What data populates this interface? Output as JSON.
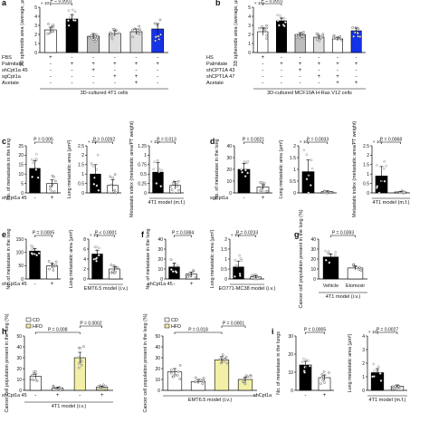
{
  "colors": {
    "black": "#000000",
    "grey": "#bdbdbd",
    "lightgrey": "#dedede",
    "blue": "#1532e8",
    "yellow": "#f2f0a6",
    "white": "#ffffff"
  },
  "chart_data": [
    {
      "id": "a",
      "panel_label": "a",
      "type": "bar",
      "ylabel": "3D spheroids area (average, μm²)",
      "ytick_scale": "× 10⁴",
      "ylim": [
        0,
        5
      ],
      "yticks": [
        0,
        1,
        2,
        3,
        4,
        5
      ],
      "xlabel": "3D-cultured 4T1 cells",
      "values": [
        2.5,
        3.7,
        1.8,
        2.1,
        2.3,
        2.6
      ],
      "errors": [
        0.3,
        0.5,
        0.3,
        0.3,
        0.3,
        0.6
      ],
      "colors": [
        "white",
        "black",
        "grey",
        "lightgrey",
        "lightgrey",
        "blue"
      ],
      "conditions": [
        {
          "label": "FBS",
          "signs": [
            "+",
            "-",
            "-",
            "-",
            "-",
            "-"
          ]
        },
        {
          "label": "Palmitate",
          "signs": [
            "-",
            "+",
            "+",
            "+",
            "+",
            "+"
          ]
        },
        {
          "label": "shCpt1a 45",
          "signs": [
            "-",
            "-",
            "+",
            "-",
            "-",
            "-"
          ]
        },
        {
          "label": "sgCpt1a",
          "signs": [
            "-",
            "-",
            "-",
            "+",
            "+",
            "-"
          ]
        },
        {
          "label": "Acetate",
          "signs": [
            "-",
            "-",
            "-",
            "-",
            "+",
            "-"
          ]
        }
      ],
      "annotations": [
        {
          "text": "P = 0.0001",
          "from": 0,
          "to": 1
        },
        {
          "text": "P = 0.0001",
          "from": 1,
          "to": 3
        },
        {
          "text": "P = 0.0001",
          "from": 1,
          "to": 2
        }
      ]
    },
    {
      "id": "b",
      "panel_label": "b",
      "type": "bar",
      "ylabel": "3D spheroids area (average, μm²)",
      "ytick_scale": "× 10⁴",
      "ylim": [
        0,
        5
      ],
      "yticks": [
        0,
        1,
        2,
        3,
        4,
        5
      ],
      "xlabel": "3D-cultured MCF10A H-Ras V12 cells",
      "values": [
        2.3,
        3.5,
        2.0,
        1.7,
        1.5,
        2.4
      ],
      "errors": [
        0.4,
        0.3,
        0.2,
        0.2,
        0.2,
        0.3
      ],
      "colors": [
        "white",
        "black",
        "grey",
        "lightgrey",
        "white",
        "blue"
      ],
      "conditions": [
        {
          "label": "HS",
          "signs": [
            "+",
            "-",
            "-",
            "-",
            "-",
            "-"
          ]
        },
        {
          "label": "Palmitate",
          "signs": [
            "-",
            "+",
            "+",
            "+",
            "+",
            "+"
          ]
        },
        {
          "label": "shCPT1A 43",
          "signs": [
            "-",
            "-",
            "+",
            "-",
            "-",
            "-"
          ]
        },
        {
          "label": "shCPT1A 47",
          "signs": [
            "-",
            "-",
            "-",
            "+",
            "+",
            "-"
          ]
        },
        {
          "label": "Acetate",
          "signs": [
            "-",
            "-",
            "-",
            "-",
            "+",
            "+"
          ]
        }
      ],
      "annotations": [
        {
          "text": "P = 0.0001",
          "from": 0,
          "to": 1
        },
        {
          "text": "P = 0.0001",
          "from": 1,
          "to": 4
        },
        {
          "text": "P = 0.0001",
          "from": 1,
          "to": 3
        }
      ]
    },
    {
      "id": "c1",
      "panel_label": "c",
      "type": "bar",
      "ylabel": "No. of metastasis in the lung",
      "ylim": [
        0,
        25
      ],
      "yticks": [
        0,
        5,
        10,
        15,
        20,
        25
      ],
      "values": [
        13,
        5
      ],
      "errors": [
        4,
        2
      ],
      "colors": [
        "black",
        "white"
      ],
      "conditions": [
        {
          "label": "shCpt1a 45",
          "signs": [
            "-",
            "+"
          ]
        }
      ],
      "annotations": [
        {
          "text": "P = 0.005",
          "from": 0,
          "to": 1
        }
      ]
    },
    {
      "id": "c2",
      "type": "bar",
      "ylabel": "Lung metastatic area (μm²)",
      "ytick_scale": "× 10⁷",
      "ylim": [
        0,
        2.5
      ],
      "yticks": [
        0,
        0.5,
        1.0,
        1.5,
        2.0,
        2.5
      ],
      "values": [
        1.0,
        0.4
      ],
      "errors": [
        0.5,
        0.3
      ],
      "colors": [
        "black",
        "white"
      ],
      "annotations": [
        {
          "text": "P = 0.0262",
          "from": 0,
          "to": 1
        }
      ]
    },
    {
      "id": "c3",
      "type": "bar",
      "ylabel": "Metastatic index (metastatic area/PT weight)",
      "ytick_scale": "× 10⁴",
      "ylim": [
        0,
        1.25
      ],
      "yticks": [
        0,
        0.25,
        0.5,
        0.75,
        1.0,
        1.25
      ],
      "xlabel": "4T1 model (m.f.)",
      "values": [
        0.55,
        0.2
      ],
      "errors": [
        0.25,
        0.1
      ],
      "colors": [
        "black",
        "white"
      ],
      "annotations": [
        {
          "text": "P = 0.013",
          "from": 0,
          "to": 1
        }
      ]
    },
    {
      "id": "d1",
      "panel_label": "d",
      "type": "bar",
      "ylabel": "No. of metastase in the lung",
      "ylim": [
        0,
        40
      ],
      "yticks": [
        0,
        10,
        20,
        30,
        40
      ],
      "values": [
        20,
        5
      ],
      "errors": [
        5,
        2
      ],
      "colors": [
        "black",
        "white"
      ],
      "conditions": [
        {
          "label": "sgCpt1a",
          "signs": [
            "-",
            "+"
          ]
        }
      ],
      "annotations": [
        {
          "text": "P = 0.0021",
          "from": 0,
          "to": 1
        }
      ]
    },
    {
      "id": "d2",
      "type": "bar",
      "ylabel": "Lung metastatic area (μm²)",
      "ytick_scale": "× 10⁷",
      "ylim": [
        0,
        2.0
      ],
      "yticks": [
        0,
        0.5,
        1.0,
        1.5,
        2.0
      ],
      "values": [
        0.9,
        0.05
      ],
      "errors": [
        0.5,
        0.03
      ],
      "colors": [
        "black",
        "white"
      ],
      "annotations": [
        {
          "text": "P = 0.0033",
          "from": 0,
          "to": 1
        }
      ]
    },
    {
      "id": "d3",
      "type": "bar",
      "ylabel": "Metastatic index (metastatic area/PT weight)",
      "ytick_scale": "× 10⁷",
      "ylim": [
        0,
        2.5
      ],
      "yticks": [
        0,
        0.5,
        1.0,
        1.5,
        2.0,
        2.5
      ],
      "xlabel": "4T1 model (m.f.)",
      "values": [
        0.9,
        0.05
      ],
      "errors": [
        0.5,
        0.03
      ],
      "colors": [
        "black",
        "white"
      ],
      "annotations": [
        {
          "text": "P = 0.0068",
          "from": 0,
          "to": 1
        }
      ]
    },
    {
      "id": "e1",
      "panel_label": "e",
      "type": "bar",
      "ylabel": "No. of metastase in the lung",
      "ylim": [
        0,
        150
      ],
      "yticks": [
        0,
        50,
        100,
        150
      ],
      "values": [
        105,
        50
      ],
      "errors": [
        10,
        8
      ],
      "colors": [
        "black",
        "white"
      ],
      "conditions": [
        {
          "label": "shCpt1a 45",
          "signs": [
            "-",
            "+"
          ]
        }
      ],
      "annotations": [
        {
          "text": "P = 0.0005",
          "from": 0,
          "to": 1
        }
      ]
    },
    {
      "id": "e2",
      "type": "bar",
      "ylabel": "Lung metastatic area (μm²)",
      "ytick_scale": "× 10⁷",
      "ylim": [
        0,
        8
      ],
      "yticks": [
        0,
        2,
        4,
        6,
        8
      ],
      "xlabel": "EMT6.5 model (i.v.)",
      "values": [
        5.0,
        2.0
      ],
      "errors": [
        0.7,
        0.4
      ],
      "colors": [
        "black",
        "white"
      ],
      "annotations": [
        {
          "text": "P < 0.0001",
          "from": 0,
          "to": 1
        }
      ]
    },
    {
      "id": "f1",
      "panel_label": "f",
      "type": "bar",
      "ylabel": "No. of metastase in the lung",
      "ylim": [
        0,
        40
      ],
      "yticks": [
        0,
        10,
        20,
        30,
        40
      ],
      "values": [
        12,
        5
      ],
      "errors": [
        4,
        2
      ],
      "colors": [
        "black",
        "white"
      ],
      "conditions": [
        {
          "label": "shCpt1a 45",
          "signs": [
            "-",
            "+"
          ]
        }
      ],
      "annotations": [
        {
          "text": "P = 0.0384",
          "from": 0,
          "to": 1
        }
      ]
    },
    {
      "id": "f2",
      "type": "bar",
      "ylabel": "Lung metastatic area (μm²)",
      "ytick_scale": "× 10⁸",
      "ylim": [
        0,
        2.0
      ],
      "yticks": [
        0,
        0.5,
        1.0,
        1.5,
        2.0
      ],
      "xlabel": "EO771-MC38 model (i.v.)",
      "values": [
        0.6,
        0.1
      ],
      "errors": [
        0.3,
        0.05
      ],
      "colors": [
        "black",
        "white"
      ],
      "annotations": [
        {
          "text": "P = 0.0233",
          "from": 0,
          "to": 1
        }
      ]
    },
    {
      "id": "g",
      "panel_label": "g",
      "type": "bar",
      "ylabel": "Cancer cell population present in the lung (%)",
      "ylim": [
        0,
        40
      ],
      "yticks": [
        0,
        10,
        20,
        30,
        40
      ],
      "xlabel": "4T1 model (i.v.)",
      "values": [
        22,
        11
      ],
      "errors": [
        3,
        2
      ],
      "colors": [
        "black",
        "white"
      ],
      "categories": [
        "Vehicle",
        "Etomoxir"
      ],
      "annotations": [
        {
          "text": "P = 0.0393",
          "from": 0,
          "to": 1
        }
      ]
    },
    {
      "id": "h1",
      "panel_label": "h",
      "type": "bar",
      "ylabel": "Cancer cell population present in the lung (%)",
      "ylim": [
        0,
        50
      ],
      "yticks": [
        0,
        10,
        20,
        30,
        40,
        50
      ],
      "xlabel": "4T1 model (i.v.)",
      "legend": [
        "CD",
        "HFD"
      ],
      "values": [
        13,
        2,
        30,
        3
      ],
      "errors": [
        2,
        1,
        5,
        1
      ],
      "colors": [
        "white",
        "white",
        "yellow",
        "yellow"
      ],
      "conditions": [
        {
          "label": "shCpt1a 45",
          "signs": [
            "-",
            "+",
            "-",
            "+"
          ]
        }
      ],
      "annotations": [
        {
          "text": "P = 0.008",
          "from": 0,
          "to": 2
        },
        {
          "text": "P = 0.0002",
          "from": 2,
          "to": 3
        }
      ]
    },
    {
      "id": "h2",
      "type": "bar",
      "ylabel": "Cancer cell population present in the lung (%)",
      "ylim": [
        0,
        50
      ],
      "yticks": [
        0,
        10,
        20,
        30,
        40,
        50
      ],
      "xlabel": "EMT6.5 model (i.v.)",
      "legend": [
        "CD",
        "HFD"
      ],
      "values": [
        17,
        8,
        28,
        10
      ],
      "errors": [
        3,
        2,
        3,
        2
      ],
      "colors": [
        "white",
        "white",
        "yellow",
        "yellow"
      ],
      "annotations": [
        {
          "text": "P = 0.018",
          "from": 0,
          "to": 2
        },
        {
          "text": "P = 0.0001",
          "from": 2,
          "to": 3
        }
      ]
    },
    {
      "id": "i1",
      "panel_label": "i",
      "type": "bar",
      "ylabel": "No. of metastase in the lungs",
      "ylim": [
        0,
        30
      ],
      "yticks": [
        0,
        10,
        20,
        30
      ],
      "values": [
        14,
        7
      ],
      "errors": [
        2,
        1.5
      ],
      "colors": [
        "black",
        "white"
      ],
      "conditions": [
        {
          "label": "shCpt1a",
          "signs": [
            "-",
            "+"
          ]
        }
      ],
      "annotations": [
        {
          "text": "P = 0.0005",
          "from": 0,
          "to": 1
        }
      ]
    },
    {
      "id": "i2",
      "type": "bar",
      "ylabel": "Lung metastatic area (μm²)",
      "ytick_scale": "× 10⁴",
      "ylim": [
        0,
        4
      ],
      "yticks": [
        0,
        1,
        2,
        3,
        4
      ],
      "xlabel": "4T1 model (m.f.)",
      "values": [
        1.3,
        0.3
      ],
      "errors": [
        0.3,
        0.1
      ],
      "colors": [
        "black",
        "white"
      ],
      "annotations": [
        {
          "text": "P = 0.0027",
          "from": 0,
          "to": 1
        }
      ]
    }
  ]
}
